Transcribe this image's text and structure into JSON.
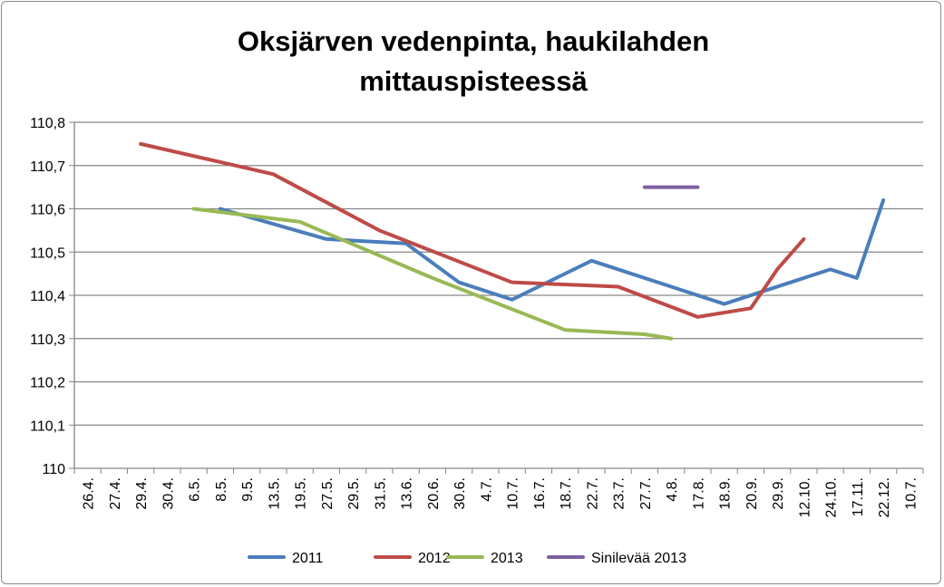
{
  "chart_data": {
    "type": "line",
    "title_lines": [
      "Oksjärven vedenpinta, haukilahden",
      "mittauspisteessä"
    ],
    "xlabel": "",
    "ylabel": "",
    "categories": [
      "26.4.",
      "27.4.",
      "29.4.",
      "30.4.",
      "6.5.",
      "8.5.",
      "9.5.",
      "13.5.",
      "19.5.",
      "27.5.",
      "29.5.",
      "31.5.",
      "13.6.",
      "20.6.",
      "30.6.",
      "4.7.",
      "10.7.",
      "16.7.",
      "18.7.",
      "22.7.",
      "23.7.",
      "27.7.",
      "4.8.",
      "17.8.",
      "18.9.",
      "20.9.",
      "29.9.",
      "12.10.",
      "24.10.",
      "17.11.",
      "22.12.",
      "10.7."
    ],
    "ylim": [
      110,
      110.8
    ],
    "yticks": [
      "110",
      "110,1",
      "110,2",
      "110,3",
      "110,4",
      "110,5",
      "110,6",
      "110,7",
      "110,8"
    ],
    "grid": true,
    "legend_position": "bottom",
    "series": [
      {
        "name": "2011",
        "color": "#4a7ebb",
        "points": [
          [
            "8.5.",
            110.6
          ],
          [
            "27.5.",
            110.53
          ],
          [
            "13.6.",
            110.52
          ],
          [
            "30.6.",
            110.43
          ],
          [
            "10.7.",
            110.39
          ],
          [
            "22.7.",
            110.48
          ],
          [
            "18.9.",
            110.38
          ],
          [
            "24.10.",
            110.46
          ],
          [
            "17.11.",
            110.44
          ],
          [
            "22.12.",
            110.62
          ]
        ]
      },
      {
        "name": "2012",
        "color": "#be4b48",
        "points": [
          [
            "29.4.",
            110.75
          ],
          [
            "13.5.",
            110.68
          ],
          [
            "31.5.",
            110.55
          ],
          [
            "10.7.",
            110.43
          ],
          [
            "23.7.",
            110.42
          ],
          [
            "17.8.",
            110.35
          ],
          [
            "20.9.",
            110.37
          ],
          [
            "29.9.",
            110.46
          ],
          [
            "12.10.",
            110.53
          ]
        ]
      },
      {
        "name": "2013",
        "color": "#98b954",
        "points": [
          [
            "6.5.",
            110.6
          ],
          [
            "19.5.",
            110.57
          ],
          [
            "20.6.",
            110.44
          ],
          [
            "18.7.",
            110.32
          ],
          [
            "27.7.",
            110.31
          ],
          [
            "4.8.",
            110.3
          ]
        ]
      },
      {
        "name": "Sinilevää 2013",
        "color": "#7d60a0",
        "points": [
          [
            "27.7.",
            110.65
          ],
          [
            "17.8.",
            110.65
          ]
        ]
      }
    ]
  }
}
